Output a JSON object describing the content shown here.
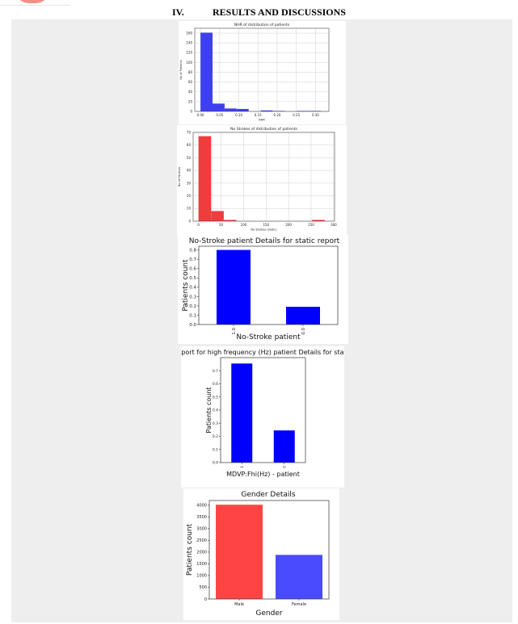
{
  "header": {
    "section_number": "IV.",
    "section_title": "RESULTS AND DISCUSSIONS"
  },
  "colors": {
    "blue": "#0000ff",
    "hist_blue": "#3f3ff2",
    "red": "#f03c3c",
    "gender_red": "#ff4444",
    "gender_blue": "#4a4aff"
  },
  "chart_data": [
    {
      "type": "bar",
      "title": "NHR of distribution of patients",
      "xlabel": "NHR",
      "ylabel": "No of Patients",
      "xlim": [
        -0.015,
        0.335
      ],
      "ylim": [
        0,
        170
      ],
      "xticks": [
        0.0,
        0.05,
        0.1,
        0.15,
        0.2,
        0.25,
        0.3
      ],
      "xtick_labels": [
        "0.00",
        "0.05",
        "0.10",
        "0.15",
        "0.20",
        "0.25",
        "0.30"
      ],
      "yticks": [
        0,
        20,
        40,
        60,
        80,
        100,
        120,
        140,
        160
      ],
      "bins": [
        {
          "x0": 0.0,
          "x1": 0.0314,
          "count": 161
        },
        {
          "x0": 0.0314,
          "x1": 0.0628,
          "count": 16
        },
        {
          "x0": 0.0628,
          "x1": 0.0942,
          "count": 6
        },
        {
          "x0": 0.0942,
          "x1": 0.1256,
          "count": 5
        },
        {
          "x0": 0.1256,
          "x1": 0.157,
          "count": 0
        },
        {
          "x0": 0.157,
          "x1": 0.1884,
          "count": 2
        },
        {
          "x0": 0.1884,
          "x1": 0.2198,
          "count": 1
        },
        {
          "x0": 0.2198,
          "x1": 0.2512,
          "count": 0
        },
        {
          "x0": 0.2512,
          "x1": 0.2826,
          "count": 1
        },
        {
          "x0": 0.2826,
          "x1": 0.314,
          "count": 1
        }
      ],
      "grid": true
    },
    {
      "type": "bar",
      "title": "No Strokes of distribution of patients",
      "xlabel": "No Strokes (static)",
      "ylabel": "No of Patients",
      "xlim": [
        -12,
        302
      ],
      "ylim": [
        0,
        70
      ],
      "xticks": [
        0,
        50,
        100,
        150,
        200,
        250,
        300
      ],
      "xtick_labels": [
        "0",
        "50",
        "100",
        "150",
        "200",
        "250",
        "300"
      ],
      "yticks": [
        0,
        10,
        20,
        30,
        40,
        50,
        60,
        70
      ],
      "bins": [
        {
          "x0": 0,
          "x1": 28,
          "count": 67
        },
        {
          "x0": 28,
          "x1": 56,
          "count": 8
        },
        {
          "x0": 56,
          "x1": 84,
          "count": 1
        },
        {
          "x0": 84,
          "x1": 112,
          "count": 0
        },
        {
          "x0": 112,
          "x1": 140,
          "count": 0
        },
        {
          "x0": 140,
          "x1": 168,
          "count": 0
        },
        {
          "x0": 168,
          "x1": 196,
          "count": 0
        },
        {
          "x0": 196,
          "x1": 224,
          "count": 0
        },
        {
          "x0": 224,
          "x1": 252,
          "count": 0
        },
        {
          "x0": 252,
          "x1": 280,
          "count": 1
        }
      ],
      "grid": true
    },
    {
      "type": "bar",
      "title": "No-Stroke patient Details for static report",
      "xlabel": "No-Stroke patient",
      "ylabel": "Patients count",
      "categories": [
        "1.0",
        "0.0"
      ],
      "values": [
        0.8,
        0.19
      ],
      "ylim": [
        0,
        0.84
      ],
      "yticks": [
        0.0,
        0.1,
        0.2,
        0.3,
        0.4,
        0.5,
        0.6,
        0.7,
        0.8
      ],
      "ytick_labels": [
        "0.0",
        "0.1",
        "0.2",
        "0.3",
        "0.4",
        "0.5",
        "0.6",
        "0.7",
        "0.8"
      ]
    },
    {
      "type": "bar",
      "title": "MDVP- report for high frequency (Hz) patient Details for static report",
      "xlabel": "MDVP:Fhi(Hz) - patient",
      "ylabel": "Patients count",
      "categories": [
        "1",
        "0"
      ],
      "values": [
        0.755,
        0.245
      ],
      "ylim": [
        0,
        0.8
      ],
      "yticks": [
        0.0,
        0.1,
        0.2,
        0.3,
        0.4,
        0.5,
        0.6,
        0.7
      ],
      "ytick_labels": [
        "0.0",
        "0.1",
        "0.2",
        "0.3",
        "0.4",
        "0.5",
        "0.6",
        "0.7"
      ]
    },
    {
      "type": "bar",
      "title": "Gender Details",
      "xlabel": "Gender",
      "ylabel": "Patients count",
      "categories": [
        "Male",
        "Female"
      ],
      "values": [
        4020,
        1880
      ],
      "ylim": [
        0,
        4200
      ],
      "yticks": [
        0,
        500,
        1000,
        1500,
        2000,
        2500,
        3000,
        3500,
        4000
      ],
      "ytick_labels": [
        "0",
        "500",
        "1000",
        "1500",
        "2000",
        "2500",
        "3000",
        "3500",
        "4000"
      ]
    }
  ]
}
